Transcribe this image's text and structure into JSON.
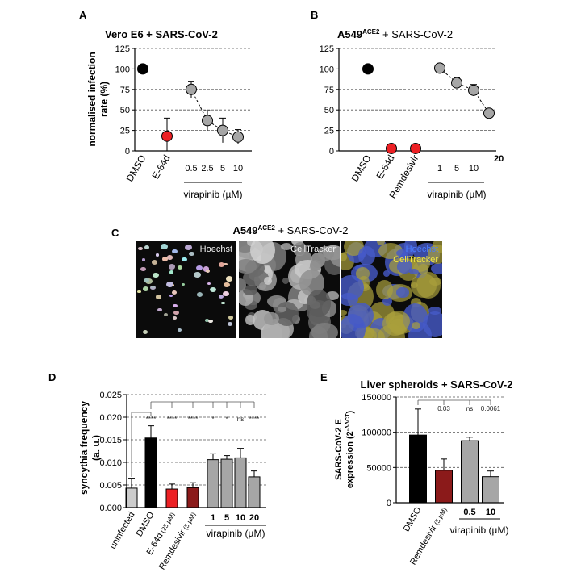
{
  "panels": {
    "A": {
      "letter": "A",
      "title": "Vero E6 + SARS-CoV-2",
      "ylabel": "normalised infection rate (%)",
      "ylabel_lines": [
        "normalised infection",
        "rate (%)"
      ],
      "yticks": [
        "0",
        "25",
        "50",
        "75",
        "100",
        "125"
      ],
      "group_label": "virapinib (µM)"
    },
    "B": {
      "letter": "B",
      "title_main": "A549",
      "title_sup": "ACE2",
      "title_rest": " + SARS-CoV-2",
      "yticks": [
        "0",
        "25",
        "50",
        "75",
        "100",
        "125"
      ],
      "group_label": "virapinib (µM)"
    },
    "C": {
      "letter": "C",
      "title_main": "A549",
      "title_sup": "ACE2",
      "title_rest": " + SARS-CoV-2",
      "label_hoechst": "Hoechst",
      "label_celltracker": "CellTracker"
    },
    "D": {
      "letter": "D",
      "ylabel": "syncythia frequency (a. u.)",
      "ylabel_lines": [
        "syncythia frequency",
        "(a. u.)"
      ],
      "yticks": [
        "0.000",
        "0.005",
        "0.010",
        "0.015",
        "0.020",
        "0.025"
      ],
      "cat_main": [
        "uninfected",
        "DMSO",
        "E-64d",
        "Remdesivir"
      ],
      "cat_sub": [
        "",
        "",
        "(25 µM)",
        "(5 µM)"
      ],
      "group_label": "virapinib (µM)"
    },
    "E": {
      "letter": "E",
      "title": "Liver spheroids + SARS-CoV-2",
      "ylabel_main": "SARS-CoV-2 E",
      "ylabel_2": "expression (2",
      "ylabel_sup": "-ΔΔCT",
      "ylabel_end": ")",
      "yticks": [
        "0",
        "50000",
        "100000",
        "150000"
      ],
      "cat_main": [
        "DMSO",
        "Remdesivir"
      ],
      "cat_sub": [
        "",
        "(5 µM)"
      ],
      "group_label": "virapinib (µM)"
    }
  },
  "colors": {
    "black": "#000000",
    "gray": "#a6a6a6",
    "red": "#ec2024",
    "darkred": "#8b1a1a",
    "lightgray": "#cccccc"
  },
  "chart_data": [
    {
      "panel": "A",
      "type": "scatter",
      "title": "Vero E6 + SARS-CoV-2",
      "ylabel": "normalised infection rate (%)",
      "ylim": [
        0,
        125
      ],
      "grid": true,
      "categories": [
        "DMSO",
        "E-64d",
        "0.5",
        "2.5",
        "5",
        "10"
      ],
      "values": [
        100,
        18,
        75,
        37,
        25,
        17
      ],
      "errors": [
        0,
        22,
        10,
        12,
        15,
        9
      ],
      "point_colors": [
        "#000000",
        "#ec2024",
        "#a6a6a6",
        "#a6a6a6",
        "#a6a6a6",
        "#a6a6a6"
      ],
      "dashed_line_categories": [
        "0.5",
        "2.5",
        "5",
        "10"
      ]
    },
    {
      "panel": "B",
      "type": "scatter",
      "title": "A549ACE2 + SARS-CoV-2",
      "ylim": [
        0,
        125
      ],
      "grid": true,
      "categories": [
        "DMSO",
        "E-64d",
        "Remdesivir",
        "1",
        "5",
        "10",
        "20"
      ],
      "values": [
        100,
        3,
        3,
        101,
        83,
        74,
        46
      ],
      "errors": [
        0,
        2,
        2,
        3,
        6,
        7,
        4
      ],
      "point_colors": [
        "#000000",
        "#ec2024",
        "#ec2024",
        "#a6a6a6",
        "#a6a6a6",
        "#a6a6a6",
        "#a6a6a6"
      ],
      "dashed_line_categories": [
        "1",
        "5",
        "10",
        "20"
      ]
    },
    {
      "panel": "D",
      "type": "bar",
      "ylabel": "syncythia frequency (a. u.)",
      "ylim": [
        0,
        0.025
      ],
      "grid": true,
      "categories": [
        "uninfected",
        "DMSO",
        "E-64d (25 µM)",
        "Remdesivir (5 µM)",
        "1",
        "5",
        "10",
        "20"
      ],
      "values": [
        0.0043,
        0.0154,
        0.0041,
        0.0044,
        0.0106,
        0.0107,
        0.011,
        0.0068
      ],
      "errors": [
        0.0022,
        0.0027,
        0.0011,
        0.0011,
        0.0013,
        0.0008,
        0.0021,
        0.0013
      ],
      "bar_colors": [
        "#cccccc",
        "#000000",
        "#ec2024",
        "#8b1a1a",
        "#a6a6a6",
        "#a6a6a6",
        "#a6a6a6",
        "#a6a6a6"
      ],
      "significance": [
        "",
        "****",
        "****",
        "****",
        "*",
        "*",
        "ns",
        "****"
      ]
    },
    {
      "panel": "E",
      "type": "bar",
      "title": "Liver spheroids + SARS-CoV-2",
      "ylabel": "SARS-CoV-2 E expression (2-ΔΔCT)",
      "ylim": [
        0,
        150000
      ],
      "grid": true,
      "categories": [
        "DMSO",
        "Remdesivir (5 µM)",
        "0.5",
        "10"
      ],
      "values": [
        96000,
        46000,
        88000,
        37000
      ],
      "errors": [
        37000,
        16000,
        5000,
        8000
      ],
      "bar_colors": [
        "#000000",
        "#8b1a1a",
        "#a6a6a6",
        "#a6a6a6"
      ],
      "significance": [
        "",
        "0.03",
        "ns",
        "0.0061"
      ]
    }
  ]
}
